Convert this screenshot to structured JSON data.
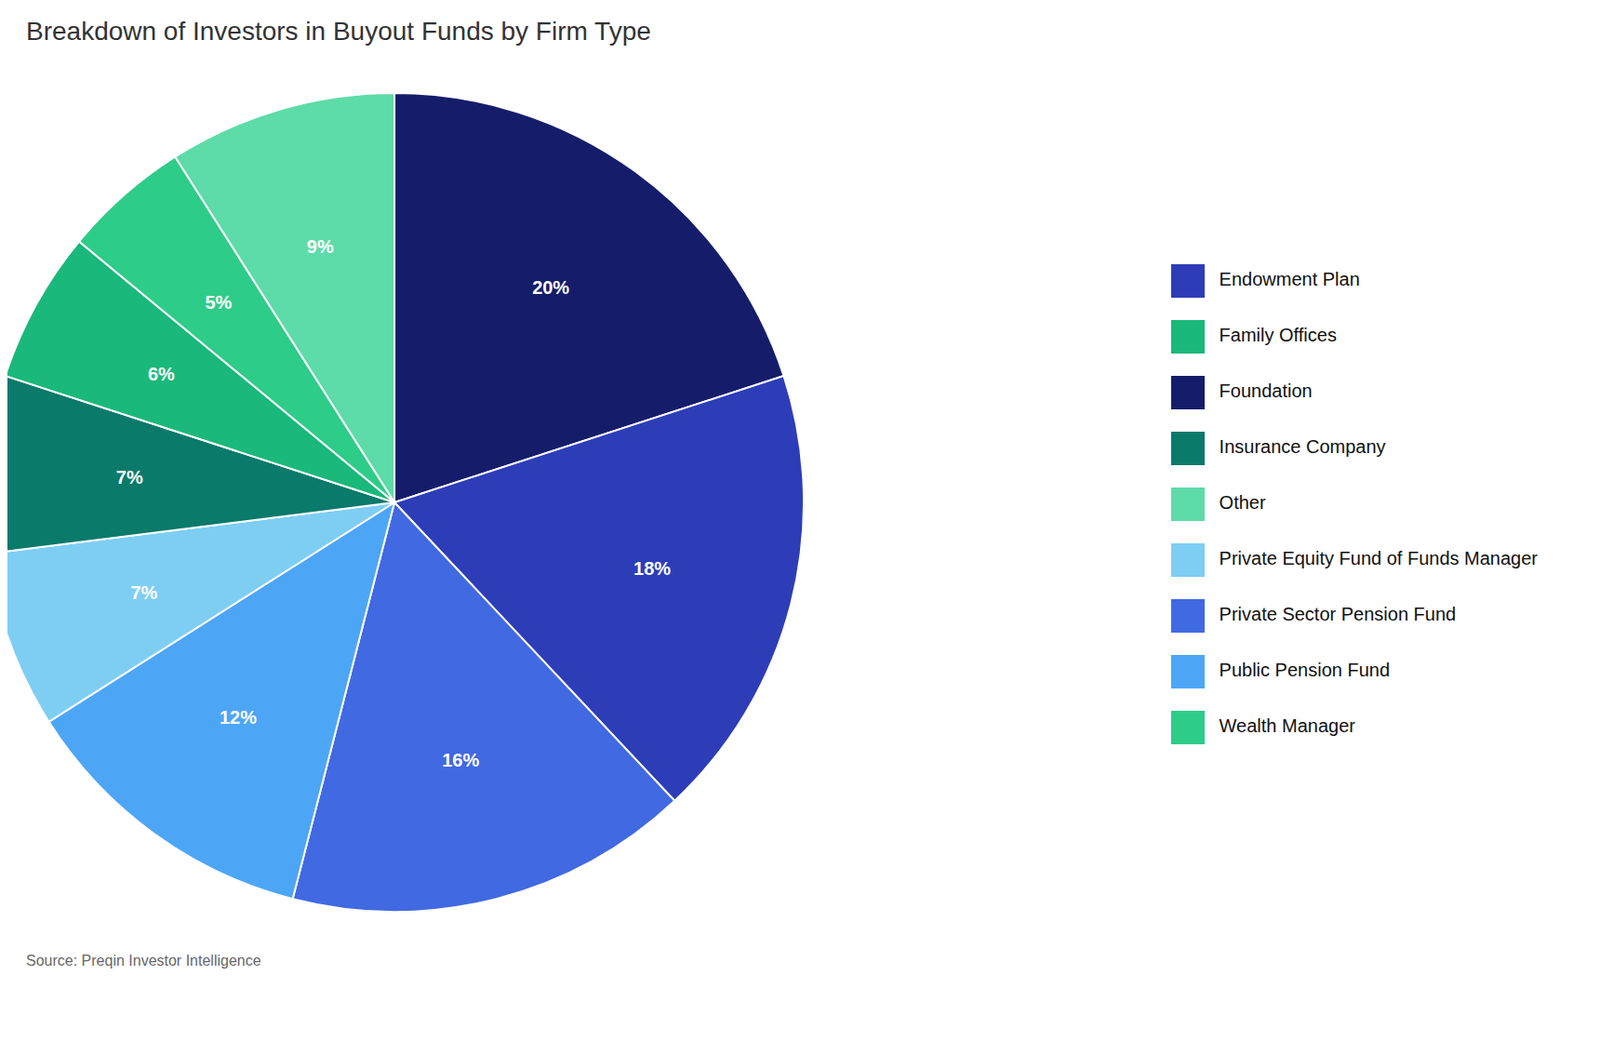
{
  "chart_data": {
    "type": "pie",
    "title": "Breakdown of Investors in Buyout Funds by Firm Type",
    "categories": [
      "Foundation",
      "Endowment Plan",
      "Private Sector Pension Fund",
      "Public Pension Fund",
      "Private Equity Fund of Funds Manager",
      "Insurance Company",
      "Family Offices",
      "Wealth Manager",
      "Other"
    ],
    "values": [
      20,
      18,
      16,
      12,
      7,
      7,
      6,
      5,
      9
    ],
    "value_labels": [
      "20%",
      "18%",
      "16%",
      "12%",
      "7%",
      "7%",
      "6%",
      "5%",
      "9%"
    ],
    "colors": [
      "#151d6b",
      "#2d3db8",
      "#4169e1",
      "#4da6f5",
      "#7ecef4",
      "#0a7a6a",
      "#1ab87a",
      "#2ecc89",
      "#5ddba8"
    ],
    "data_labels": true,
    "legend": "right",
    "annotations": [
      "Source: Preqin Investor Intelligence"
    ]
  }
}
